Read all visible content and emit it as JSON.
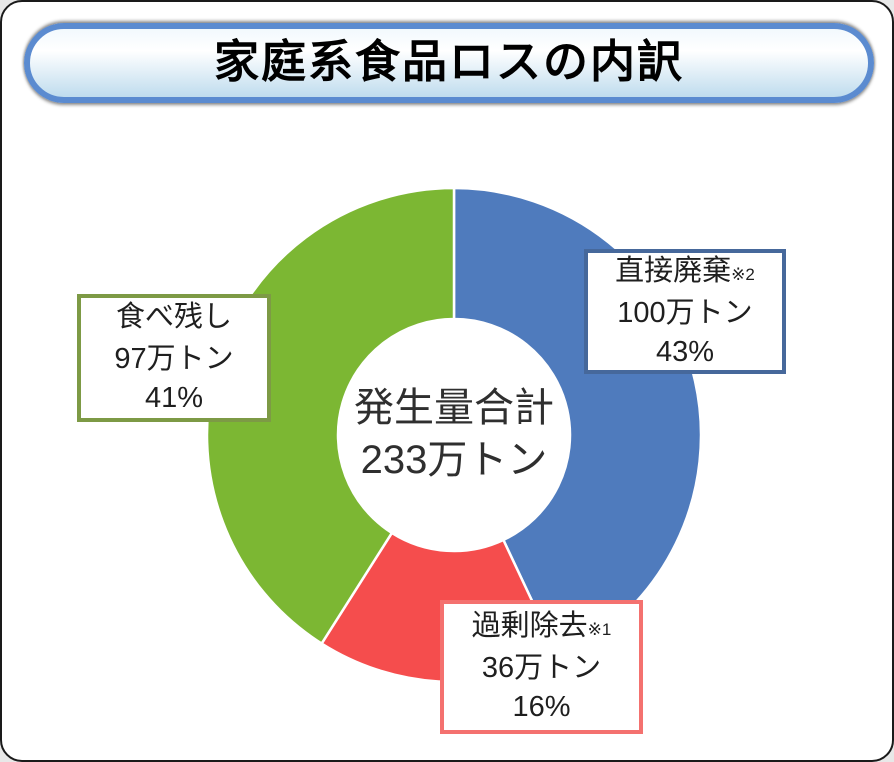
{
  "title": {
    "text": "家庭系食品ロスの内訳",
    "border_color": "#5b8bd0",
    "fill_top": "#f2f9fd",
    "fill_bottom": "#bfdcee"
  },
  "chart_data": {
    "type": "pie",
    "subtype": "donut",
    "title": "家庭系食品ロスの内訳",
    "start_angle_deg": -90,
    "direction": "clockwise",
    "legend": "none",
    "separator_color": "#ffffff",
    "center_label": {
      "line1": "発生量合計",
      "line2": "233万トン"
    },
    "segments": [
      {
        "name": "直接廃棄",
        "footnote": "※2",
        "amount": "100万トン",
        "percent": 43,
        "percent_label": "43%",
        "color": "#4f7bbd",
        "box_border": "#46689b"
      },
      {
        "name": "過剰除去",
        "footnote": "※1",
        "amount": "36万トン",
        "percent": 16,
        "percent_label": "16%",
        "color": "#f54d4d",
        "box_border": "#f4716f"
      },
      {
        "name": "食べ残し",
        "footnote": "",
        "amount": "97万トン",
        "percent": 41,
        "percent_label": "41%",
        "color": "#7cb733",
        "box_border": "#7d9a45"
      }
    ]
  }
}
